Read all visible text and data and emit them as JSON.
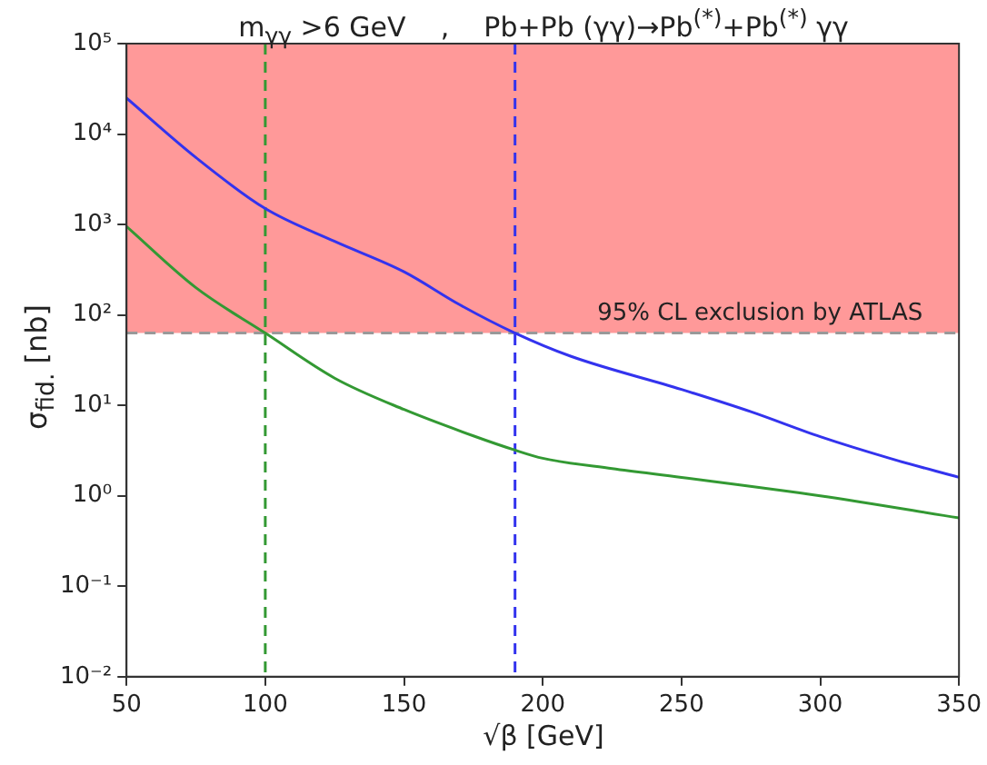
{
  "chart_data": {
    "type": "line",
    "title": "m$_{γγ}$ >6 GeV    ,    Pb+Pb (γγ)→Pb$^{(*)}$+Pb$^{(*)}$ γγ",
    "xlabel": "√β [GeV]",
    "ylabel": "σ$_{fid.}$ [nb]",
    "log": "y",
    "grid": false,
    "legend": false,
    "marker": "none",
    "line_style": "solid",
    "xlim": [
      50,
      350
    ],
    "xticks": [
      50,
      100,
      150,
      200,
      250,
      300,
      350
    ],
    "ylim": [
      0.01,
      100000
    ],
    "yticks": [
      {
        "value": 0.01,
        "label": "10⁻²"
      },
      {
        "value": 0.1,
        "label": "10⁻¹"
      },
      {
        "value": 1,
        "label": "10⁰"
      },
      {
        "value": 10,
        "label": "10¹"
      },
      {
        "value": 100,
        "label": "10²"
      },
      {
        "value": 1000,
        "label": "10³"
      },
      {
        "value": 10000,
        "label": "10⁴"
      },
      {
        "value": 100000,
        "label": "10⁵"
      }
    ],
    "series": [
      {
        "color": "#3333ee",
        "x": [
          50,
          75,
          100,
          125,
          150,
          170,
          190,
          210,
          250,
          275,
          300,
          325,
          350
        ],
        "values": [
          25000,
          5500,
          1500,
          650,
          300,
          130,
          63,
          35,
          15,
          8.5,
          4.5,
          2.6,
          1.6
        ]
      },
      {
        "color": "#339933",
        "x": [
          50,
          75,
          100,
          125,
          150,
          175,
          190,
          200,
          225,
          250,
          300,
          350
        ],
        "values": [
          950,
          200,
          63,
          20,
          9,
          4.6,
          3.2,
          2.6,
          2.0,
          1.6,
          1.0,
          0.57
        ]
      }
    ],
    "ref_lines": [
      {
        "axis": "x",
        "value": 100,
        "color": "#339933",
        "line_style": "dashed"
      },
      {
        "axis": "x",
        "value": 190,
        "color": "#3333ee",
        "line_style": "dashed"
      },
      {
        "axis": "y",
        "value": 63,
        "color": "#999999",
        "line_style": "dashed"
      }
    ],
    "bands": [
      {
        "axis": "y",
        "from": 63,
        "to": 100000,
        "label": "95% CL exclusion by ATLAS",
        "color": "#ff9999"
      }
    ]
  }
}
